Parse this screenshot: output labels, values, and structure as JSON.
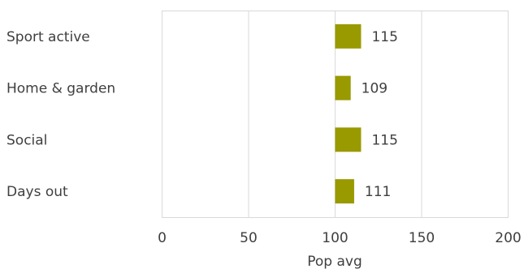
{
  "chart_data": {
    "type": "bar",
    "orientation": "horizontal",
    "categories": [
      "Sport active",
      "Home & garden",
      "Social",
      "Days out"
    ],
    "values": [
      115,
      109,
      115,
      111
    ],
    "xlabel": "Pop avg",
    "xlim": [
      0,
      200
    ],
    "xticks": [
      0,
      50,
      100,
      150,
      200
    ],
    "grid": true,
    "bar_color": "#999900",
    "baseline": 100
  }
}
